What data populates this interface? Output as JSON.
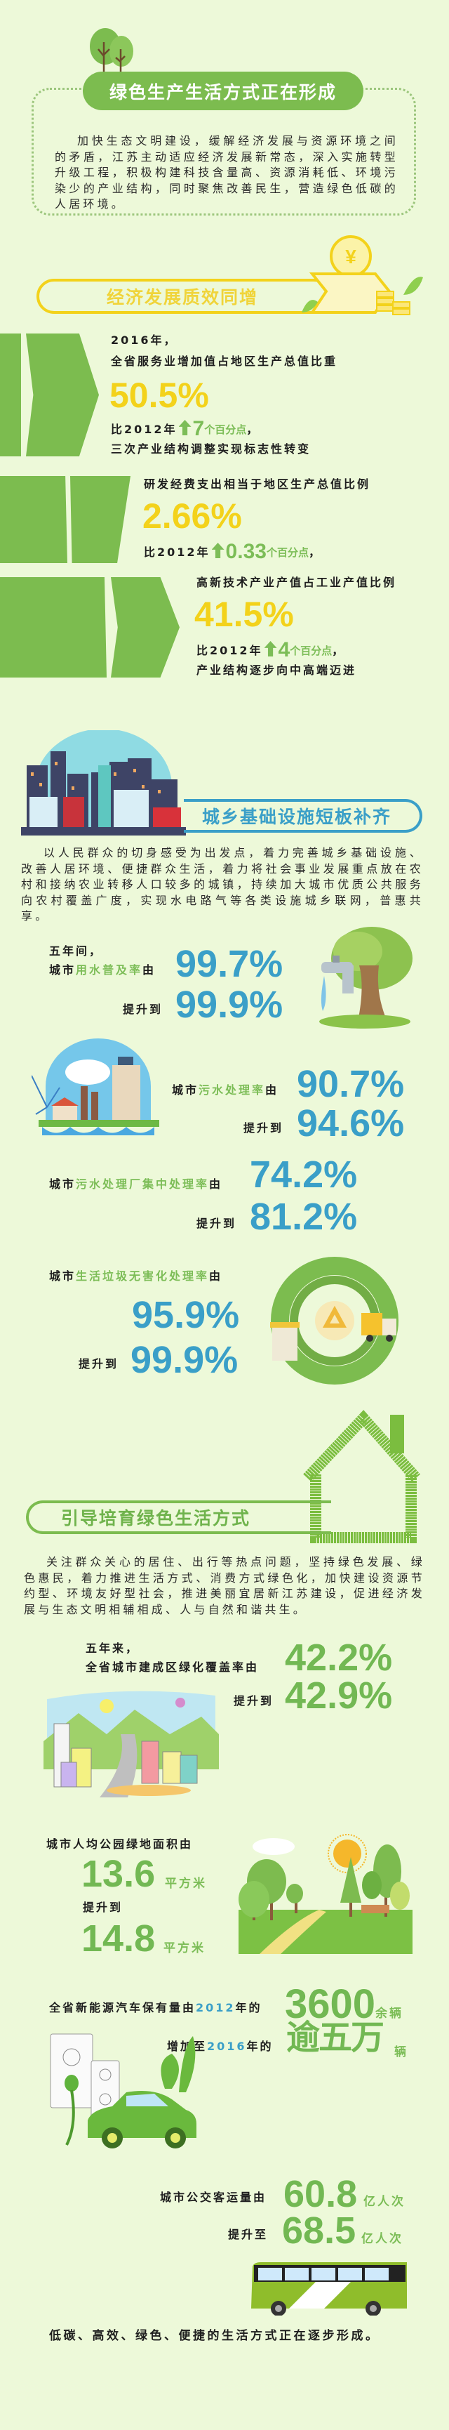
{
  "colors": {
    "background": "#edf9d9",
    "green": "#7cbc4f",
    "yellow": "#f3d21b",
    "blue": "#3a9fc8",
    "text": "#1e1e1e"
  },
  "header": {
    "title": "绿色生产生活方式正在形成",
    "intro": "加快生态文明建设，缓解经济发展与资源环境之间的矛盾，江苏主动适应经济发展新常态，深入实施转型升级工程，积极构建科技含量高、资源消耗低、环境污染少的产业结构，同时聚焦改善民生，营造绿色低碳的人居环境。"
  },
  "economy": {
    "title": "经济发展质效同增",
    "coin_symbol": "¥",
    "items": [
      {
        "line1": "2016年，",
        "label": "全省服务业增加值占地区生产总值比重",
        "value": "50.5%",
        "compare": "比2012年",
        "delta": "7",
        "delta_unit": "个百分点",
        "comma": "，",
        "note": "三次产业结构调整实现标志性转变"
      },
      {
        "label": "研发经费支出相当于地区生产总值比例",
        "value": "2.66%",
        "compare": "比2012年",
        "delta": "0.33",
        "delta_unit": "个百分点",
        "comma": "，"
      },
      {
        "label": "高新技术产业产值占工业产值比例",
        "value": "41.5%",
        "compare": "比2012年",
        "delta": "4",
        "delta_unit": "个百分点",
        "comma": "，",
        "note": "产业结构逐步向中高端迈进"
      }
    ]
  },
  "infrastructure": {
    "title": "城乡基础设施短板补齐",
    "paragraph": "以人民群众的切身感受为出发点，着力完善城乡基础设施、改善人居环境、便捷群众生活，着力将社会事业发展重点放在农村和接纳农业转移人口较多的城镇，持续加大城市优质公共服务向农村覆盖广度，实现水电路气等各类设施城乡联网，普惠共享。",
    "up_label": "提升到",
    "water": {
      "intro": "五年间，",
      "pre": "城市",
      "key": "用水普及率",
      "post": "由",
      "from": "99.7%",
      "to": "99.9%"
    },
    "sewage": {
      "pre": "城市",
      "key": "污水处理率",
      "post": "由",
      "from": "90.7%",
      "to": "94.6%"
    },
    "plant": {
      "pre": "城市",
      "key": "污水处理厂集中处理率",
      "post": "由",
      "from": "74.2%",
      "to": "81.2%"
    },
    "garbage": {
      "pre": "城市",
      "key": "生活垃圾无害化处理率",
      "post": "由",
      "from": "95.9%",
      "to": "99.9%"
    }
  },
  "green_life": {
    "title": "引导培育绿色生活方式",
    "paragraph": "关注群众关心的居住、出行等热点问题，坚持绿色发展、绿色惠民，着力推进生活方式、消费方式绿色化，加快建设资源节约型、环境友好型社会，推进美丽宜居新江苏建设，促进经济发展与生态文明相辅相成、人与自然和谐共生。",
    "coverage": {
      "intro": "五年来，",
      "label": "全省城市建成区绿化覆盖率由",
      "from": "42.2%",
      "up": "提升到",
      "to": "42.9%"
    },
    "park": {
      "label": "城市人均公园绿地面积由",
      "from": "13.6",
      "unit": "平方米",
      "up": "提升到",
      "to": "14.8"
    },
    "ev": {
      "label": "全省新能源汽车保有量由",
      "year1": "2012",
      "year_suffix": "年的",
      "from": "3600",
      "from_unit": "余辆",
      "up": "增加至",
      "year2": "2016",
      "to": "逾五万",
      "to_unit": "辆"
    },
    "bus": {
      "label": "城市公交客运量由",
      "from": "60.8",
      "unit": "亿人次",
      "up": "提升至",
      "to": "68.5"
    },
    "closing": "低碳、高效、绿色、便捷的生活方式正在逐步形成。"
  }
}
